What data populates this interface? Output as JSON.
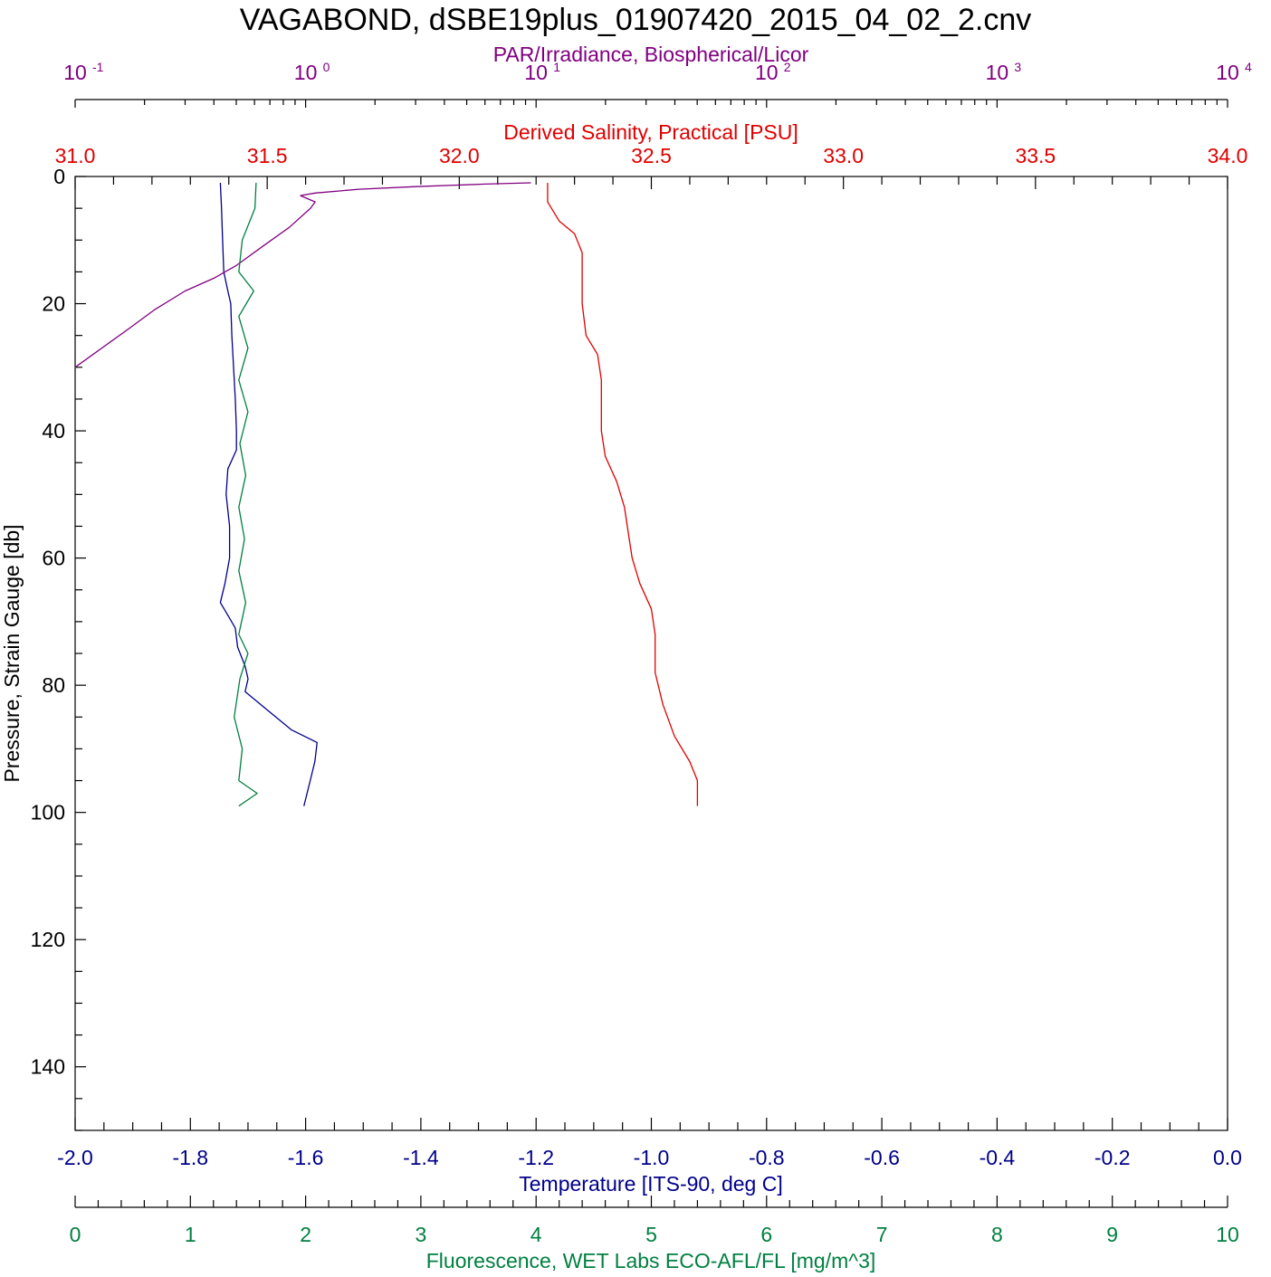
{
  "colors": {
    "temperature": "#00008b",
    "salinity": "#e00000",
    "par": "#800080",
    "fluorescence": "#008040",
    "frame": "#000000"
  },
  "chart_data": {
    "type": "line",
    "title": "VAGABOND, dSBE19plus_01907420_2015_04_02_2.cnv",
    "y_axis": {
      "label": "Pressure, Strain Gauge [db]",
      "range": [
        0,
        150
      ],
      "reversed": true,
      "ticks": [
        "0",
        "20",
        "40",
        "60",
        "80",
        "100",
        "120",
        "140"
      ]
    },
    "axes": {
      "par": {
        "label": "PAR/Irradiance, Biospherical/Licor",
        "scale": "log",
        "range": [
          0.1,
          10000
        ],
        "tick_labels": [
          {
            "base": "10",
            "exp": "-1"
          },
          {
            "base": "10",
            "exp": "0"
          },
          {
            "base": "10",
            "exp": "1"
          },
          {
            "base": "10",
            "exp": "2"
          },
          {
            "base": "10",
            "exp": "3"
          },
          {
            "base": "10",
            "exp": "4"
          }
        ]
      },
      "salinity": {
        "label": "Derived Salinity, Practical [PSU]",
        "scale": "linear",
        "range": [
          31.0,
          34.0
        ],
        "ticks": [
          "31.0",
          "31.5",
          "32.0",
          "32.5",
          "33.0",
          "33.5",
          "34.0"
        ]
      },
      "temperature": {
        "label": "Temperature [ITS-90, deg C]",
        "scale": "linear",
        "range": [
          -2.0,
          0.0
        ],
        "ticks": [
          "-2.0",
          "-1.8",
          "-1.6",
          "-1.4",
          "-1.2",
          "-1.0",
          "-0.8",
          "-0.6",
          "-0.4",
          "-0.2",
          "0.0"
        ]
      },
      "fluorescence": {
        "label": "Fluorescence, WET Labs ECO-AFL/FL [mg/m^3]",
        "scale": "linear",
        "range": [
          0,
          10
        ],
        "ticks": [
          "0",
          "1",
          "2",
          "3",
          "4",
          "5",
          "6",
          "7",
          "8",
          "9",
          "10"
        ]
      }
    },
    "series": [
      {
        "axis": "temperature",
        "points": [
          [
            -1.748,
            1
          ],
          [
            -1.746,
            5
          ],
          [
            -1.744,
            10
          ],
          [
            -1.742,
            15
          ],
          [
            -1.735,
            18
          ],
          [
            -1.73,
            20
          ],
          [
            -1.728,
            25
          ],
          [
            -1.725,
            30
          ],
          [
            -1.722,
            35
          ],
          [
            -1.72,
            40
          ],
          [
            -1.72,
            43
          ],
          [
            -1.735,
            46
          ],
          [
            -1.738,
            50
          ],
          [
            -1.732,
            55
          ],
          [
            -1.732,
            60
          ],
          [
            -1.74,
            64
          ],
          [
            -1.748,
            67
          ],
          [
            -1.735,
            69
          ],
          [
            -1.722,
            71
          ],
          [
            -1.718,
            74
          ],
          [
            -1.705,
            77
          ],
          [
            -1.7,
            79
          ],
          [
            -1.705,
            81
          ],
          [
            -1.665,
            84
          ],
          [
            -1.625,
            87
          ],
          [
            -1.58,
            89
          ],
          [
            -1.584,
            92
          ],
          [
            -1.592,
            95
          ],
          [
            -1.603,
            99
          ]
        ]
      },
      {
        "axis": "salinity",
        "points": [
          [
            32.23,
            1
          ],
          [
            32.23,
            4
          ],
          [
            32.26,
            7
          ],
          [
            32.3,
            9
          ],
          [
            32.32,
            12
          ],
          [
            32.32,
            20
          ],
          [
            32.33,
            25
          ],
          [
            32.36,
            28
          ],
          [
            32.37,
            32
          ],
          [
            32.37,
            40
          ],
          [
            32.38,
            44
          ],
          [
            32.41,
            48
          ],
          [
            32.43,
            52
          ],
          [
            32.44,
            56
          ],
          [
            32.45,
            60
          ],
          [
            32.47,
            64
          ],
          [
            32.5,
            68
          ],
          [
            32.51,
            72
          ],
          [
            32.51,
            78
          ],
          [
            32.53,
            83
          ],
          [
            32.56,
            88
          ],
          [
            32.6,
            92
          ],
          [
            32.62,
            95
          ],
          [
            32.62,
            99
          ]
        ]
      },
      {
        "axis": "par",
        "points": [
          [
            9.5,
            1
          ],
          [
            6.0,
            1.2
          ],
          [
            3.0,
            1.6
          ],
          [
            1.7,
            2
          ],
          [
            1.1,
            2.6
          ],
          [
            0.95,
            3
          ],
          [
            1.1,
            4
          ],
          [
            1.05,
            5
          ],
          [
            0.85,
            8
          ],
          [
            0.65,
            11
          ],
          [
            0.5,
            14
          ],
          [
            0.4,
            16
          ],
          [
            0.3,
            18
          ],
          [
            0.22,
            21
          ],
          [
            0.17,
            24
          ],
          [
            0.1,
            30
          ]
        ]
      },
      {
        "axis": "fluorescence",
        "points": [
          [
            1.57,
            1
          ],
          [
            1.56,
            5
          ],
          [
            1.45,
            10
          ],
          [
            1.42,
            15
          ],
          [
            1.55,
            18
          ],
          [
            1.42,
            22
          ],
          [
            1.5,
            27
          ],
          [
            1.42,
            32
          ],
          [
            1.5,
            37
          ],
          [
            1.43,
            42
          ],
          [
            1.48,
            47
          ],
          [
            1.42,
            52
          ],
          [
            1.47,
            57
          ],
          [
            1.42,
            62
          ],
          [
            1.48,
            67
          ],
          [
            1.42,
            72
          ],
          [
            1.5,
            75
          ],
          [
            1.43,
            79
          ],
          [
            1.38,
            85
          ],
          [
            1.45,
            90
          ],
          [
            1.42,
            95
          ],
          [
            1.58,
            97
          ],
          [
            1.42,
            99
          ]
        ]
      }
    ],
    "grid": false
  }
}
